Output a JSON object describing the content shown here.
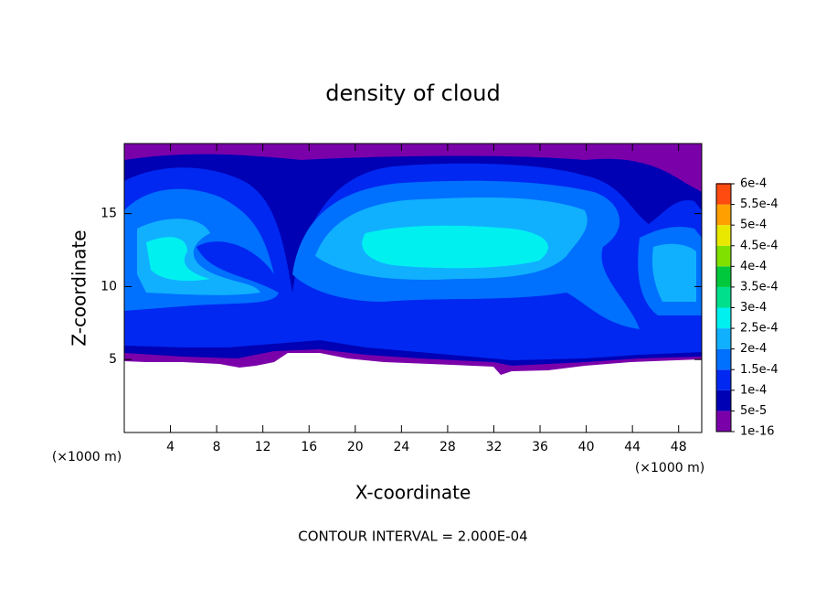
{
  "chart_data": {
    "type": "contour",
    "title": "density of cloud",
    "xlabel": "X-coordinate",
    "ylabel": "Z-coordinate",
    "x_unit_label": "(×1000 m)",
    "note": "CONTOUR INTERVAL = 2.000E-04",
    "xlim": [
      0,
      50
    ],
    "xticks": [
      4,
      8,
      12,
      16,
      20,
      24,
      28,
      32,
      36,
      40,
      44,
      48
    ],
    "ylim": [
      0,
      19.8
    ],
    "yticks": [
      5,
      10,
      15
    ],
    "colorbar": {
      "levels": [
        {
          "value": 1e-16,
          "label": "1e-16"
        },
        {
          "value": 5e-05,
          "label": "5e-5"
        },
        {
          "value": 0.0001,
          "label": "1e-4"
        },
        {
          "value": 0.00015,
          "label": "1.5e-4"
        },
        {
          "value": 0.0002,
          "label": "2e-4"
        },
        {
          "value": 0.00025,
          "label": "2.5e-4"
        },
        {
          "value": 0.0003,
          "label": "3e-4"
        },
        {
          "value": 0.00035,
          "label": "3.5e-4"
        },
        {
          "value": 0.0004,
          "label": "4e-4"
        },
        {
          "value": 0.00045,
          "label": "4.5e-4"
        },
        {
          "value": 0.0005,
          "label": "5e-4"
        },
        {
          "value": 0.00055,
          "label": "5.5e-4"
        },
        {
          "value": 0.0006,
          "label": "6e-4"
        }
      ],
      "colors": [
        "#7a00aa",
        "#0000b4",
        "#0028f0",
        "#0070ff",
        "#10b0ff",
        "#00f0f0",
        "#00e08c",
        "#00c83c",
        "#80e000",
        "#e8e800",
        "#ffa000",
        "#ff4a10",
        "#ff8c8c"
      ]
    }
  }
}
